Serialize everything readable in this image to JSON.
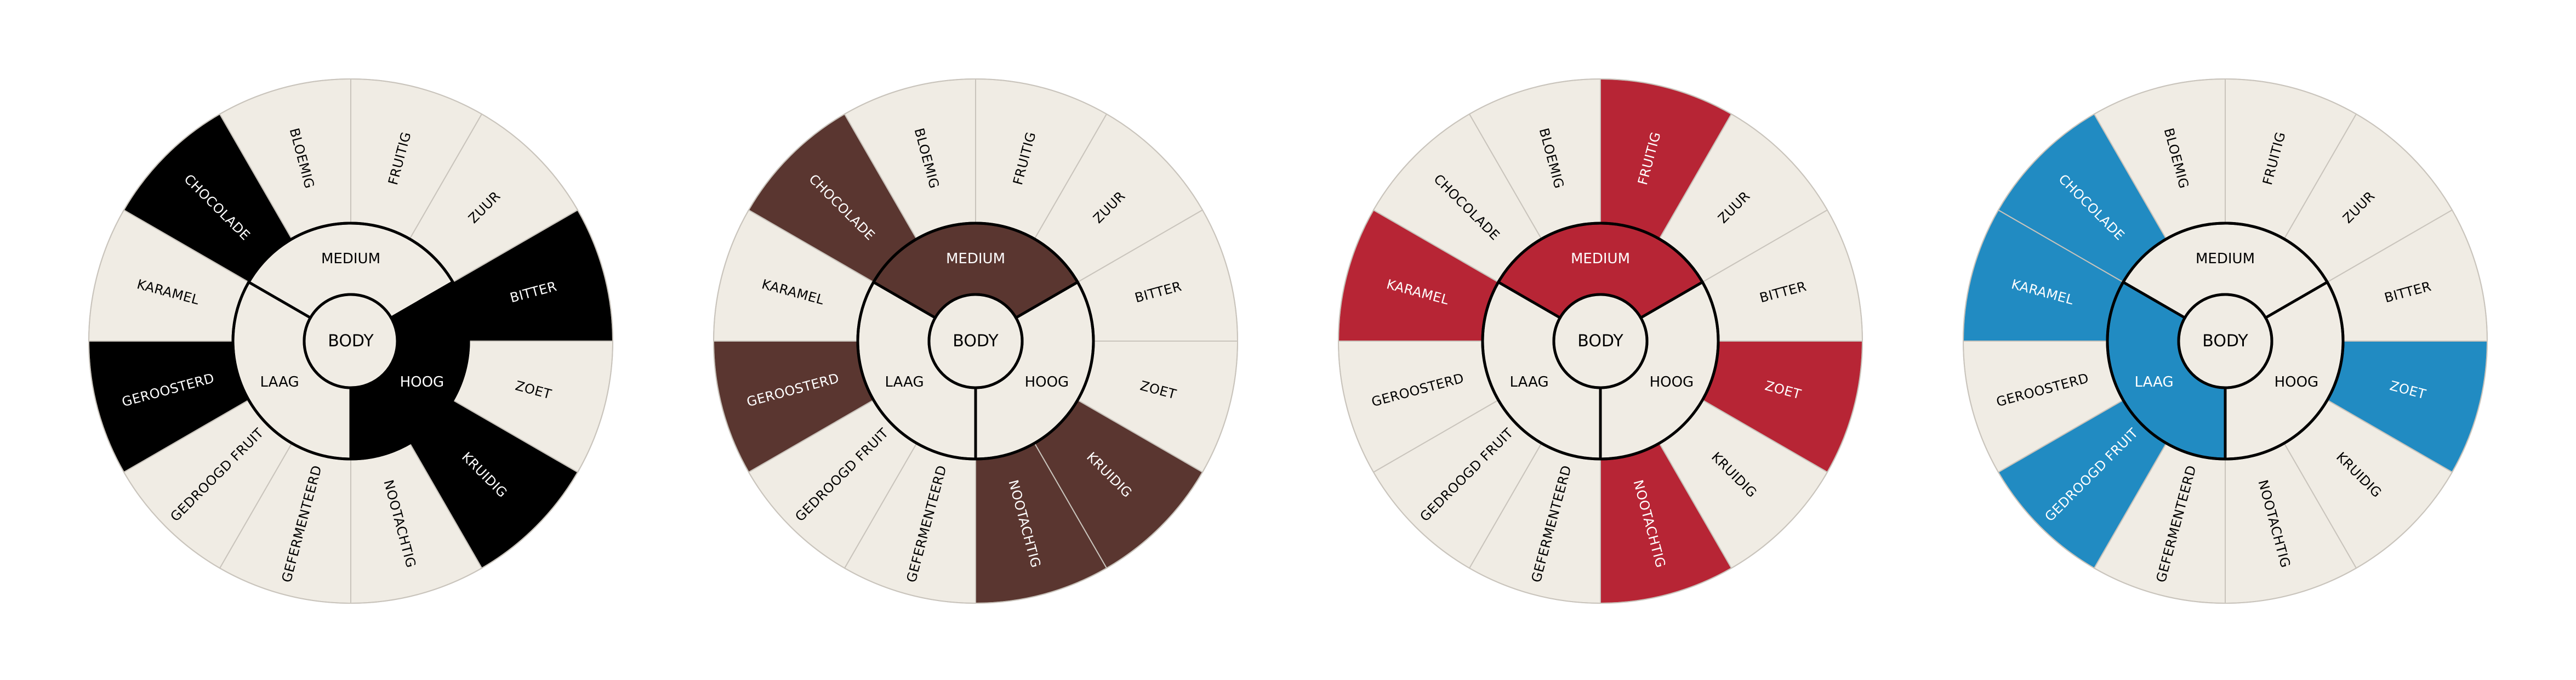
{
  "center_label": "BODY",
  "body_levels": [
    "MEDIUM",
    "HOOG",
    "LAAG"
  ],
  "outer_segments": [
    "FRUITIG",
    "ZUUR",
    "BITTER",
    "ZOET",
    "KRUIDIG",
    "NOOTACHTIG",
    "GEFERMENTEERD",
    "GEDROOGD FRUIT",
    "GEROOSTERD",
    "KARAMEL",
    "CHOCOLADE",
    "BLOEMIG"
  ],
  "colors": {
    "base": "#f0ece4",
    "line": "#c9c4bc",
    "ink": "#000000",
    "black": "#000000",
    "brown": "#5a3630",
    "red": "#b72535",
    "blue": "#218bc2"
  },
  "wheels": [
    {
      "highlight_color": "#000000",
      "highlighted_outer": [
        "BITTER",
        "KRUIDIG",
        "GEROOSTERD",
        "CHOCOLADE"
      ],
      "highlighted_level": "HOOG"
    },
    {
      "highlight_color": "#5a3630",
      "highlighted_outer": [
        "KRUIDIG",
        "NOOTACHTIG",
        "GEROOSTERD",
        "CHOCOLADE"
      ],
      "highlighted_level": "MEDIUM"
    },
    {
      "highlight_color": "#b72535",
      "highlighted_outer": [
        "FRUITIG",
        "ZOET",
        "NOOTACHTIG",
        "KARAMEL"
      ],
      "highlighted_level": "MEDIUM"
    },
    {
      "highlight_color": "#218bc2",
      "highlighted_outer": [
        "ZOET",
        "GEDROOGD FRUIT",
        "KARAMEL",
        "CHOCOLADE"
      ],
      "highlighted_level": "LAAG"
    }
  ]
}
